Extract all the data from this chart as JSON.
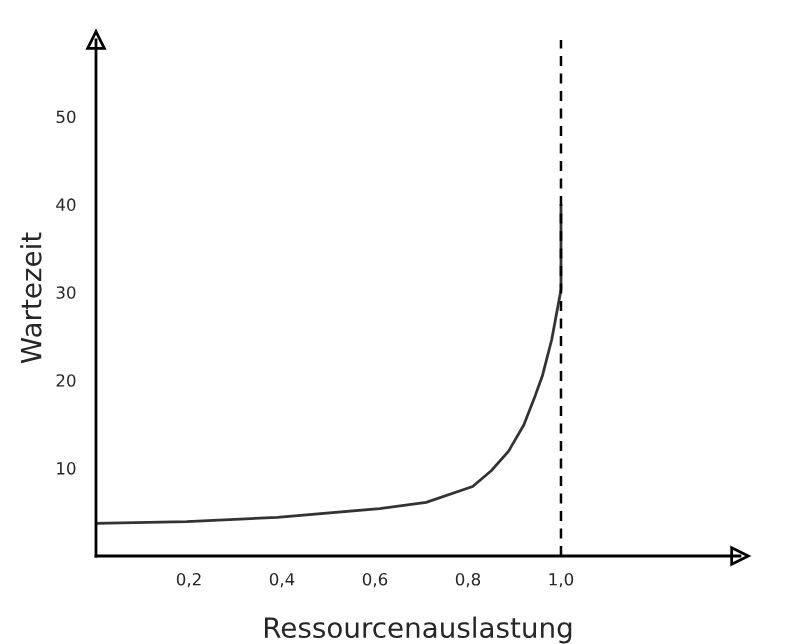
{
  "chart_data": {
    "type": "line",
    "xlabel": "Ressourcenauslastung",
    "ylabel": "Wartezeit",
    "x": [
      0,
      0.195,
      0.39,
      0.61,
      0.71,
      0.81,
      0.85,
      0.887,
      0.92,
      0.945,
      0.96,
      0.98,
      1.0,
      1.0
    ],
    "series": [
      {
        "color": "#333333",
        "values": [
          3.7,
          3.9,
          4.4,
          5.4,
          6.1,
          7.9,
          9.7,
          11.9,
          14.9,
          18.3,
          20.5,
          24.6,
          30.3,
          40
        ]
      }
    ],
    "xlim": [
      0,
      1.385
    ],
    "ylim": [
      0,
      58.7
    ],
    "xticks": [
      {
        "value": 0.2,
        "label": "0,2"
      },
      {
        "value": 0.4,
        "label": "0,4"
      },
      {
        "value": 0.6,
        "label": "0,6"
      },
      {
        "value": 0.8,
        "label": "0,8"
      },
      {
        "value": 1.0,
        "label": "1,0"
      }
    ],
    "yticks": [
      10,
      20,
      30,
      40,
      50
    ],
    "ref_lines": [
      {
        "axis": "x",
        "value": 1.0,
        "color": "#000000",
        "line_style": "dashed"
      }
    ],
    "grid": false,
    "legend": false
  }
}
